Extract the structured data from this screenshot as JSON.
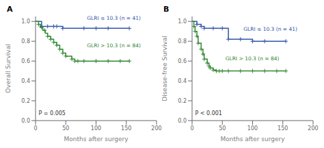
{
  "chart_data": [
    {
      "type": "step",
      "title": "A",
      "xlabel": "Months after surgery",
      "ylabel": "Overall Survival",
      "xlim": [
        0,
        200
      ],
      "xticks": [
        0,
        50,
        100,
        150,
        200
      ],
      "ylim": [
        0.0,
        1.05
      ],
      "yticks": [
        {
          "value": 0.0,
          "label": "0.0"
        },
        0.2,
        0.4,
        0.6,
        0.8,
        {
          "value": 1.0,
          "label": "1.0"
        }
      ],
      "annotations": [
        {
          "text": "P = 0.005",
          "x": 5,
          "y": 0.05
        }
      ],
      "series": [
        {
          "name": "GLRI ≤ 10.3 (n = 41)",
          "color": "#3355aa",
          "marker": "plus",
          "x": [
            0,
            10,
            10,
            45,
            45,
            155
          ],
          "values": [
            1.0,
            1.0,
            0.95,
            0.95,
            0.93,
            0.93
          ],
          "censor_x": [
            10,
            20,
            30,
            35,
            45,
            80,
            100,
            120,
            155
          ],
          "censor_y": [
            0.95,
            0.95,
            0.95,
            0.95,
            0.93,
            0.93,
            0.93,
            0.93,
            0.93
          ],
          "label_x": 85,
          "label_y": 1.01
        },
        {
          "name": "GLRI > 10.3 (n = 84)",
          "color": "#338833",
          "marker": "plus",
          "x": [
            0,
            5,
            5,
            8,
            8,
            12,
            12,
            16,
            16,
            20,
            20,
            25,
            25,
            30,
            30,
            35,
            35,
            40,
            40,
            45,
            45,
            50,
            50,
            60,
            60,
            65,
            65,
            70,
            70,
            75,
            75,
            80,
            80,
            155
          ],
          "values": [
            1.0,
            1.0,
            0.97,
            0.97,
            0.94,
            0.94,
            0.91,
            0.91,
            0.88,
            0.88,
            0.85,
            0.85,
            0.82,
            0.82,
            0.79,
            0.79,
            0.76,
            0.76,
            0.72,
            0.72,
            0.68,
            0.68,
            0.65,
            0.65,
            0.62,
            0.62,
            0.6,
            0.6,
            0.6,
            0.6,
            0.6,
            0.6,
            0.6,
            0.6
          ],
          "censor_x": [
            5,
            10,
            15,
            20,
            25,
            30,
            35,
            40,
            45,
            50,
            60,
            65,
            70,
            80,
            100,
            120,
            140,
            155
          ],
          "censor_y": [
            0.97,
            0.94,
            0.91,
            0.85,
            0.82,
            0.79,
            0.76,
            0.72,
            0.68,
            0.65,
            0.62,
            0.6,
            0.6,
            0.6,
            0.6,
            0.6,
            0.6,
            0.6
          ],
          "label_x": 85,
          "label_y": 0.73
        }
      ]
    },
    {
      "type": "step",
      "title": "B",
      "xlabel": "Months after surgery",
      "ylabel": "Disease-free Survival",
      "xlim": [
        0,
        200
      ],
      "xticks": [
        0,
        50,
        100,
        150,
        200
      ],
      "ylim": [
        0.0,
        1.05
      ],
      "yticks": [
        {
          "value": 0.0,
          "label": "0.0"
        },
        0.2,
        0.4,
        0.6,
        0.8,
        {
          "value": 1.0,
          "label": "1.0"
        }
      ],
      "annotations": [
        {
          "text": "P < 0.001",
          "x": 5,
          "y": 0.05
        }
      ],
      "series": [
        {
          "name": "GLRI ≤ 10.3 (n = 41)",
          "color": "#3355aa",
          "marker": "plus",
          "x": [
            0,
            8,
            8,
            15,
            15,
            20,
            20,
            60,
            60,
            100,
            100,
            155
          ],
          "values": [
            1.0,
            1.0,
            0.97,
            0.97,
            0.95,
            0.95,
            0.93,
            0.93,
            0.82,
            0.82,
            0.8,
            0.8
          ],
          "censor_x": [
            8,
            15,
            20,
            35,
            50,
            60,
            80,
            100,
            120,
            155
          ],
          "censor_y": [
            0.97,
            0.95,
            0.93,
            0.93,
            0.93,
            0.82,
            0.82,
            0.8,
            0.8,
            0.8
          ],
          "label_x": 85,
          "label_y": 0.9
        },
        {
          "name": "GLRI > 10.3 (n = 84)",
          "color": "#338833",
          "marker": "plus",
          "x": [
            0,
            3,
            3,
            5,
            5,
            8,
            8,
            10,
            10,
            15,
            15,
            18,
            18,
            20,
            20,
            25,
            25,
            28,
            28,
            30,
            30,
            35,
            35,
            40,
            40,
            45,
            45,
            50,
            50,
            60,
            60,
            155
          ],
          "values": [
            1.0,
            1.0,
            0.95,
            0.95,
            0.9,
            0.9,
            0.85,
            0.85,
            0.78,
            0.78,
            0.72,
            0.72,
            0.67,
            0.67,
            0.62,
            0.62,
            0.58,
            0.58,
            0.55,
            0.55,
            0.53,
            0.53,
            0.51,
            0.51,
            0.5,
            0.5,
            0.5,
            0.5,
            0.5,
            0.5,
            0.5,
            0.5
          ],
          "censor_x": [
            3,
            5,
            8,
            10,
            15,
            18,
            20,
            25,
            28,
            30,
            35,
            40,
            45,
            50,
            60,
            80,
            100,
            120,
            140,
            155
          ],
          "censor_y": [
            0.95,
            0.9,
            0.85,
            0.78,
            0.72,
            0.67,
            0.62,
            0.58,
            0.55,
            0.53,
            0.51,
            0.5,
            0.5,
            0.5,
            0.5,
            0.5,
            0.5,
            0.5,
            0.5,
            0.5
          ],
          "label_x": 55,
          "label_y": 0.6
        }
      ]
    }
  ]
}
